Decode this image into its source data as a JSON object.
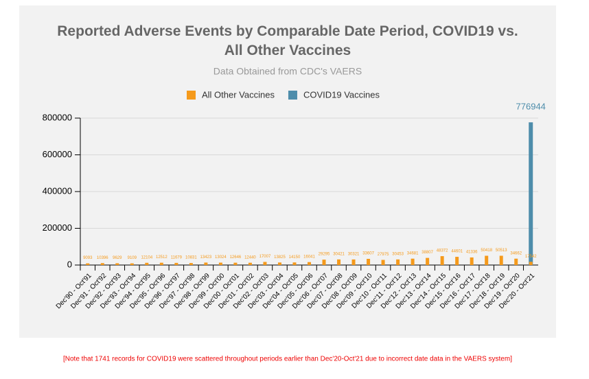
{
  "chart_data": {
    "type": "bar",
    "title": "Reported Adverse Events by Comparable Date Period, COVID19 vs. All Other Vaccines",
    "subtitle": "Data Obtained from CDC's VAERS",
    "annotation": "[Note that 1741 records for COVID19 were scattered throughout periods earlier than Dec'20-Oct'21 due to incorrect date data in the VAERS system]",
    "categories": [
      "Dec'90 - Oct'91",
      "Dec'91 - Oct'92",
      "Dec'92 - Oct'93",
      "Dec'93 - Oct'94",
      "Dec'94 - Oct'95",
      "Dec'95 - Oct'96",
      "Dec'96 - Oct'97",
      "Dec'97 - Oct'98",
      "Dec'98 - Oct'99",
      "Dec'99 - Oct'00",
      "Dec'00 - Oct'01",
      "Dec'01 - Oct'02",
      "Dec'02 - Oct'03",
      "Dec'03 - Oct'04",
      "Dec'04 - Oct'05",
      "Dec'05 - Oct'06",
      "Dec'06 - Oct'07",
      "Dec'07 - Oct'08",
      "Dec'08 - Oct'09",
      "Dec'09 - Oct'10",
      "Dec'10 - Oct'11",
      "Dec'11 - Oct'12",
      "Dec'12 - Oct'13",
      "Dec'13 - Oct'14",
      "Dec'14 - Oct'15",
      "Dec'15 - Oct'16",
      "Dec'16 - Oct'17",
      "Dec'17 - Oct'18",
      "Dec'18 - Oct'19",
      "Dec'19 - Oct'20",
      "Dec'20 - Oct'21"
    ],
    "series": [
      {
        "name": "All Other Vaccines",
        "color": "#f59a1b",
        "values": [
          9093,
          10396,
          9629,
          9109,
          12104,
          12512,
          11679,
          10831,
          13423,
          13024,
          12646,
          12440,
          17007,
          13825,
          14150,
          16041,
          29295,
          30421,
          30321,
          33607,
          27975,
          30453,
          34681,
          38807,
          48372,
          44601,
          41336,
          50418,
          50513,
          34662,
          17542
        ]
      },
      {
        "name": "COVID19 Vaccines",
        "color": "#4e8dab",
        "values": [
          null,
          null,
          null,
          null,
          null,
          null,
          null,
          null,
          null,
          null,
          null,
          null,
          null,
          null,
          null,
          null,
          null,
          null,
          null,
          null,
          null,
          null,
          null,
          null,
          null,
          null,
          null,
          null,
          null,
          null,
          776944
        ]
      }
    ],
    "ylim": [
      0,
      800000
    ],
    "yticks": [
      0,
      200000,
      400000,
      600000,
      800000
    ],
    "grid": true
  }
}
